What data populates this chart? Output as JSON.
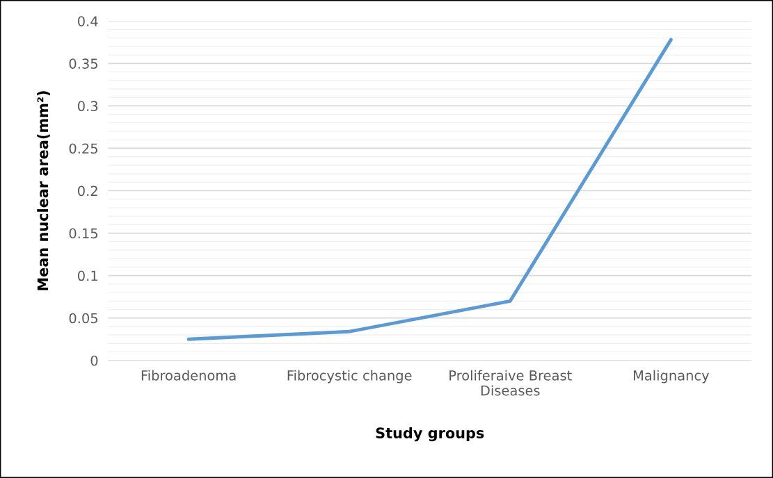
{
  "chart_data": {
    "type": "line",
    "xlabel": "Study groups",
    "ylabel": "Mean nuclear area(mm²)",
    "categories": [
      "Fibroadenoma",
      "Fibrocystic change",
      "Proliferaive Breast Diseases",
      "Malignancy"
    ],
    "series": [
      {
        "color": "#5b9bd5",
        "values": [
          0.025,
          0.034,
          0.07,
          0.378
        ]
      }
    ],
    "ylim": [
      0,
      0.4
    ],
    "yticks": [
      0,
      0.05,
      0.1,
      0.15,
      0.2,
      0.25,
      0.3,
      0.35,
      0.4
    ],
    "grid": "y",
    "legend": false,
    "marker": "none",
    "line_style": "solid"
  }
}
